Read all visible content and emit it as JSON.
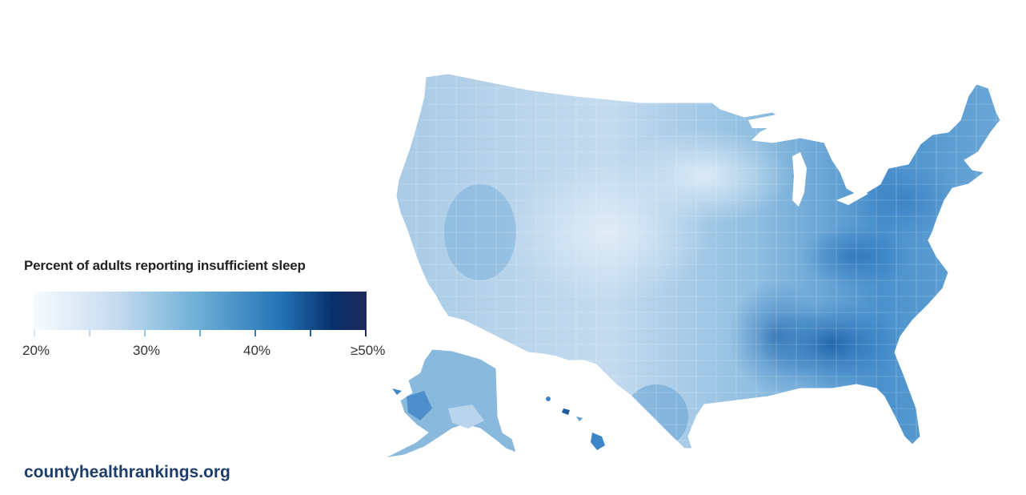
{
  "legend": {
    "title": "Percent of adults reporting insufficient sleep",
    "labels": [
      "20%",
      "30%",
      "40%",
      "≥50%"
    ],
    "stops": [
      {
        "value": 20,
        "color": "#f7fbff"
      },
      {
        "value": 30,
        "color": "#c6dbef"
      },
      {
        "value": 40,
        "color": "#3182bd"
      },
      {
        "value": 50,
        "color": "#1f2a5a"
      }
    ]
  },
  "source": "countyhealthrankings.org",
  "map": {
    "regions": [
      {
        "name": "contiguous-us",
        "color": "#a8cbe6"
      },
      {
        "name": "alaska",
        "color": "#86b6dd"
      },
      {
        "name": "hawaii",
        "color": "#3d85c6"
      }
    ]
  }
}
